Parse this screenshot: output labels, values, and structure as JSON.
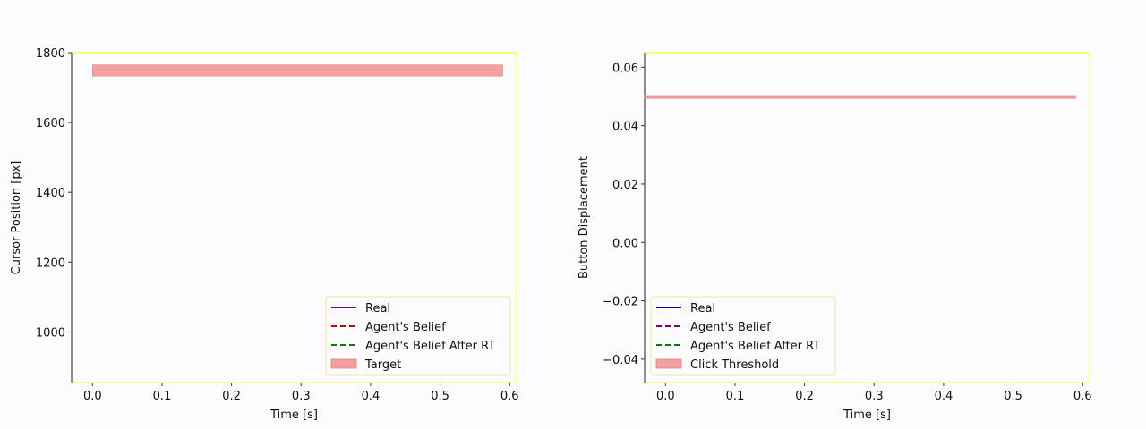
{
  "chart_data": [
    {
      "type": "line",
      "xlabel": "Time [s]",
      "ylabel": "Cursor Position [px]",
      "xlim": [
        -0.03,
        0.61
      ],
      "ylim": [
        855,
        1800
      ],
      "xticks": [
        0.0,
        0.1,
        0.2,
        0.3,
        0.4,
        0.5,
        0.6
      ],
      "xtick_labels": [
        "0.0",
        "0.1",
        "0.2",
        "0.3",
        "0.4",
        "0.5",
        "0.6"
      ],
      "yticks": [
        1000,
        1200,
        1400,
        1600,
        1800
      ],
      "ytick_labels": [
        "1000",
        "1200",
        "1400",
        "1600",
        "1800"
      ],
      "band": {
        "x": [
          0.0,
          0.59
        ],
        "y": [
          1733,
          1765
        ],
        "color": "#f4a0a0"
      },
      "legend": {
        "position": "bottom-right",
        "entries": [
          {
            "label": "Real",
            "style": "solid",
            "color": "#800080"
          },
          {
            "label": "Agent's Belief",
            "style": "dashed",
            "color": "#c00000"
          },
          {
            "label": "Agent's Belief After RT",
            "style": "dashed",
            "color": "#008000"
          },
          {
            "label": "Target",
            "style": "patch",
            "color": "#f4a0a0"
          }
        ]
      },
      "grid": false
    },
    {
      "type": "line",
      "xlabel": "Time [s]",
      "ylabel": "Button Displacement",
      "xlim": [
        -0.03,
        0.61
      ],
      "ylim": [
        -0.048,
        0.065
      ],
      "xticks": [
        0.0,
        0.1,
        0.2,
        0.3,
        0.4,
        0.5,
        0.6
      ],
      "xtick_labels": [
        "0.0",
        "0.1",
        "0.2",
        "0.3",
        "0.4",
        "0.5",
        "0.6"
      ],
      "yticks": [
        -0.04,
        -0.02,
        0.0,
        0.02,
        0.04,
        0.06
      ],
      "ytick_labels": [
        "−0.04",
        "−0.02",
        "0.00",
        "0.02",
        "0.04",
        "0.06"
      ],
      "band": {
        "x": [
          -0.03,
          0.59
        ],
        "y": [
          0.0493,
          0.0503
        ],
        "color": "#f4a0a0"
      },
      "legend": {
        "position": "bottom-left",
        "entries": [
          {
            "label": "Real",
            "style": "solid",
            "color": "#0000cc"
          },
          {
            "label": "Agent's Belief",
            "style": "dashed",
            "color": "#800080"
          },
          {
            "label": "Agent's Belief After RT",
            "style": "dashed",
            "color": "#008000"
          },
          {
            "label": "Click Threshold",
            "style": "patch",
            "color": "#f4a0a0"
          }
        ]
      },
      "grid": false
    }
  ]
}
